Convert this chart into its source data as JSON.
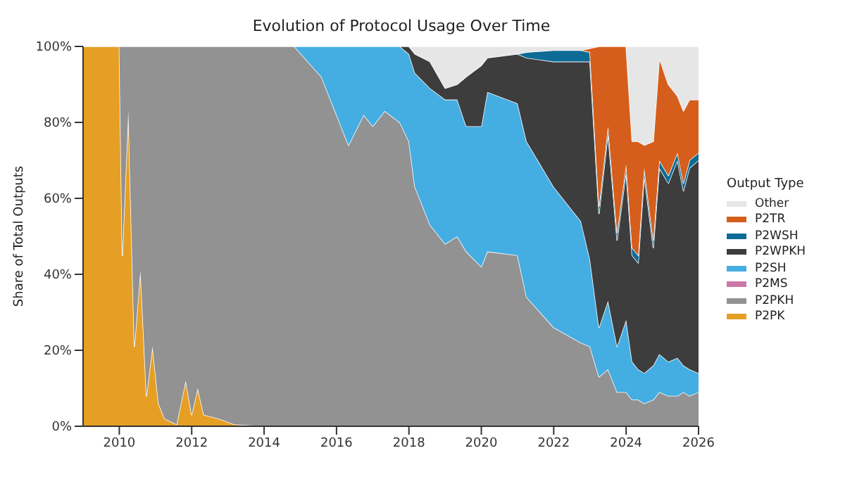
{
  "chart_data": {
    "type": "area",
    "title": "Evolution of Protocol Usage Over Time",
    "ylabel": "Share of Total Outputs",
    "legend_title": "Output Type",
    "stacked": true,
    "legend": "right",
    "x": [
      "2009-01",
      "2010-01",
      "2010-02",
      "2010-04",
      "2010-06",
      "2010-08",
      "2010-09",
      "2010-10",
      "2010-12",
      "2011-02",
      "2011-04",
      "2011-08",
      "2011-11",
      "2012-01",
      "2012-03",
      "2012-05",
      "2012-10",
      "2013-03",
      "2014-01",
      "2014-11",
      "2015-08",
      "2016-05",
      "2016-10",
      "2017-01",
      "2017-05",
      "2017-10",
      "2018-01",
      "2018-03",
      "2018-08",
      "2019-01",
      "2019-05",
      "2019-08",
      "2020-01",
      "2020-03",
      "2021-01",
      "2021-04",
      "2022-01",
      "2022-10",
      "2023-01",
      "2023-04",
      "2023-07",
      "2023-10",
      "2024-01",
      "2024-03",
      "2024-05",
      "2024-07",
      "2024-10",
      "2024-12",
      "2025-03",
      "2025-06",
      "2025-08",
      "2025-10",
      "2026-01"
    ],
    "xlim": [
      "2009-01",
      "2026-01"
    ],
    "xticks": [
      {
        "value": "2010",
        "label": "2010"
      },
      {
        "value": "2012",
        "label": "2012"
      },
      {
        "value": "2014",
        "label": "2014"
      },
      {
        "value": "2016",
        "label": "2016"
      },
      {
        "value": "2018",
        "label": "2018"
      },
      {
        "value": "2020",
        "label": "2020"
      },
      {
        "value": "2022",
        "label": "2022"
      },
      {
        "value": "2024",
        "label": "2024"
      },
      {
        "value": "2026",
        "label": "2026"
      }
    ],
    "ylim": [
      0,
      100
    ],
    "yticks": [
      {
        "value": 0,
        "label": "0%"
      },
      {
        "value": 20,
        "label": "20%"
      },
      {
        "value": 40,
        "label": "40%"
      },
      {
        "value": 60,
        "label": "60%"
      },
      {
        "value": 80,
        "label": "80%"
      },
      {
        "value": 100,
        "label": "100%"
      }
    ],
    "series": [
      {
        "name": "P2PK",
        "color": "#e69f25",
        "values": [
          100,
          100,
          45,
          83,
          21,
          41,
          25,
          8,
          21,
          6,
          2,
          0.5,
          12,
          3,
          10,
          3,
          2,
          0.5,
          0,
          null,
          null,
          null,
          null,
          null,
          null,
          null,
          null,
          null,
          null,
          null,
          null,
          null,
          null,
          null,
          null,
          null,
          null,
          null,
          null,
          null,
          null,
          null,
          null,
          null,
          null,
          null,
          null,
          null,
          null,
          null,
          null,
          null,
          null
        ]
      },
      {
        "name": "P2PKH",
        "color": "#929292",
        "values": [
          null,
          0,
          55,
          17,
          79,
          59,
          75,
          92,
          79,
          94,
          98,
          99.5,
          88,
          97,
          90,
          97,
          98,
          99.5,
          100,
          100,
          92,
          74,
          82,
          79,
          83,
          80,
          75,
          63,
          53,
          48,
          50,
          46,
          42,
          46,
          45,
          34,
          26,
          22,
          21,
          13,
          15,
          9,
          9,
          7,
          7,
          6,
          7,
          9,
          8,
          8,
          9,
          8,
          9
        ]
      },
      {
        "name": "P2MS",
        "color": "#cc79a7",
        "values": [
          null,
          null,
          null,
          null,
          null,
          null,
          null,
          null,
          null,
          null,
          null,
          null,
          null,
          null,
          null,
          null,
          null,
          null,
          null,
          null,
          null,
          null,
          null,
          null,
          null,
          null,
          null,
          null,
          null,
          null,
          null,
          null,
          null,
          null,
          null,
          null,
          null,
          null,
          null,
          null,
          null,
          null,
          null,
          null,
          null,
          null,
          null,
          null,
          null,
          null,
          null,
          null,
          null
        ]
      },
      {
        "name": "P2SH",
        "color": "#44ade2",
        "values": [
          null,
          null,
          null,
          null,
          null,
          null,
          null,
          null,
          null,
          null,
          null,
          null,
          null,
          null,
          null,
          null,
          null,
          null,
          null,
          0,
          8,
          26,
          18,
          21,
          17,
          20,
          23,
          30,
          36,
          38,
          36,
          33,
          37,
          42,
          40,
          41,
          37,
          32,
          23,
          13,
          18,
          12,
          19,
          10,
          8,
          8,
          9,
          10,
          9,
          10,
          7,
          7,
          5
        ]
      },
      {
        "name": "P2WPKH",
        "color": "#3d3d3d",
        "values": [
          null,
          null,
          null,
          null,
          null,
          null,
          null,
          null,
          null,
          null,
          null,
          null,
          null,
          null,
          null,
          null,
          null,
          null,
          null,
          null,
          null,
          null,
          null,
          null,
          null,
          0,
          2,
          5,
          7,
          3,
          4,
          13,
          16,
          9,
          13,
          22,
          33,
          42,
          52,
          30,
          44,
          28,
          39,
          28,
          28,
          52,
          31,
          49,
          47,
          52,
          46,
          53,
          56
        ]
      },
      {
        "name": "P2WSH",
        "color": "#0d6b96",
        "values": [
          null,
          null,
          null,
          null,
          null,
          null,
          null,
          null,
          null,
          null,
          null,
          null,
          null,
          null,
          null,
          null,
          null,
          null,
          null,
          null,
          null,
          null,
          null,
          null,
          null,
          null,
          null,
          null,
          null,
          null,
          null,
          null,
          null,
          null,
          0,
          1.5,
          3,
          3,
          2.5,
          2,
          2,
          2,
          2,
          2,
          2,
          2,
          2,
          2,
          2,
          2,
          2,
          2,
          2
        ]
      },
      {
        "name": "P2TR",
        "color": "#d55e1c",
        "values": [
          null,
          null,
          null,
          null,
          null,
          null,
          null,
          null,
          null,
          null,
          null,
          null,
          null,
          null,
          null,
          null,
          null,
          null,
          null,
          null,
          null,
          null,
          null,
          null,
          null,
          null,
          null,
          null,
          null,
          null,
          null,
          null,
          null,
          null,
          null,
          null,
          null,
          0,
          1,
          42,
          21,
          49,
          31,
          28,
          30,
          6,
          26,
          27,
          24,
          15,
          19,
          16,
          14
        ]
      },
      {
        "name": "Other",
        "color": "#e6e6e6",
        "values": [
          null,
          null,
          null,
          null,
          null,
          null,
          null,
          null,
          null,
          null,
          null,
          null,
          null,
          null,
          null,
          null,
          null,
          null,
          null,
          null,
          null,
          null,
          null,
          null,
          null,
          null,
          0,
          2,
          4,
          11,
          10,
          8,
          5,
          3,
          2,
          1.5,
          1,
          1,
          0.5,
          0,
          null,
          null,
          0,
          25,
          25,
          26,
          25,
          3,
          10,
          13,
          17,
          14,
          14
        ]
      }
    ]
  }
}
